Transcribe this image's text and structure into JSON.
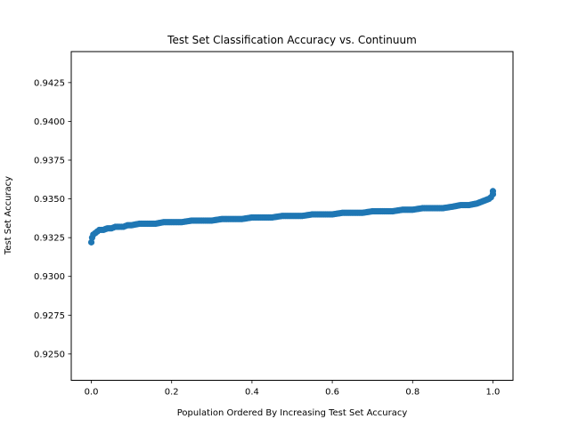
{
  "chart_data": {
    "type": "scatter",
    "title": "Test Set Classification Accuracy vs. Continuum",
    "xlabel": "Population Ordered By Increasing Test Set Accuracy",
    "ylabel": "Test Set Accuracy",
    "xlim": [
      -0.05,
      1.05
    ],
    "ylim": [
      0.9233,
      0.9445
    ],
    "xticks": [
      0.0,
      0.2,
      0.4,
      0.6,
      0.8,
      1.0
    ],
    "xtick_labels": [
      "0.0",
      "0.2",
      "0.4",
      "0.6",
      "0.8",
      "1.0"
    ],
    "yticks": [
      0.925,
      0.9275,
      0.93,
      0.9325,
      0.935,
      0.9375,
      0.94,
      0.9425
    ],
    "ytick_labels": [
      "0.9250",
      "0.9275",
      "0.9300",
      "0.9325",
      "0.9350",
      "0.9375",
      "0.9400",
      "0.9425"
    ],
    "grid": false,
    "marker_color": "#1f77b4",
    "series": [
      {
        "x": [
          0.0,
          0.002,
          0.005,
          0.01,
          0.015,
          0.02,
          0.03,
          0.04,
          0.05,
          0.06,
          0.07,
          0.08,
          0.09,
          0.1,
          0.12,
          0.14,
          0.16,
          0.18,
          0.2,
          0.225,
          0.25,
          0.275,
          0.3,
          0.325,
          0.35,
          0.375,
          0.4,
          0.425,
          0.45,
          0.475,
          0.5,
          0.525,
          0.55,
          0.575,
          0.6,
          0.625,
          0.65,
          0.675,
          0.7,
          0.725,
          0.75,
          0.775,
          0.8,
          0.825,
          0.85,
          0.875,
          0.9,
          0.92,
          0.94,
          0.96,
          0.97,
          0.98,
          0.99,
          0.995,
          1.0,
          1.0
        ],
        "y": [
          0.9322,
          0.9325,
          0.9327,
          0.9328,
          0.9329,
          0.933,
          0.933,
          0.9331,
          0.9331,
          0.9332,
          0.9332,
          0.9332,
          0.9333,
          0.9333,
          0.9334,
          0.9334,
          0.9334,
          0.9335,
          0.9335,
          0.9335,
          0.9336,
          0.9336,
          0.9336,
          0.9337,
          0.9337,
          0.9337,
          0.9338,
          0.9338,
          0.9338,
          0.9339,
          0.9339,
          0.9339,
          0.934,
          0.934,
          0.934,
          0.9341,
          0.9341,
          0.9341,
          0.9342,
          0.9342,
          0.9342,
          0.9343,
          0.9343,
          0.9344,
          0.9344,
          0.9344,
          0.9345,
          0.9346,
          0.9346,
          0.9347,
          0.9348,
          0.9349,
          0.935,
          0.9351,
          0.9353,
          0.9355
        ]
      }
    ]
  }
}
